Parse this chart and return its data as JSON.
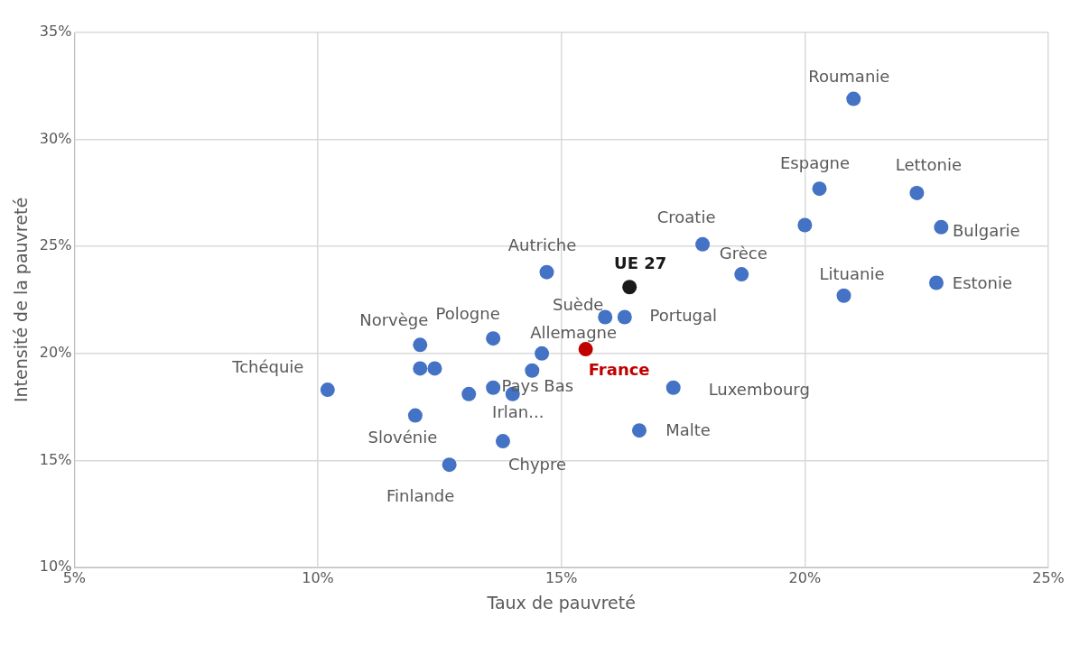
{
  "chart_data": {
    "type": "scatter",
    "xlabel": "Taux de pauvreté",
    "ylabel": "Intensité de la pauvreté",
    "x": [
      21.0,
      20.3,
      22.3,
      22.8,
      22.7,
      20.8,
      20.0,
      17.9,
      18.7,
      16.4,
      14.7,
      15.9,
      16.3,
      15.5,
      14.6,
      13.6,
      12.1,
      12.1,
      12.4,
      10.2,
      14.4,
      13.1,
      13.6,
      14.0,
      17.3,
      12.0,
      13.8,
      16.6,
      12.7
    ],
    "values": [
      31.9,
      27.7,
      27.5,
      25.9,
      23.3,
      22.7,
      26.0,
      25.1,
      23.7,
      23.1,
      23.8,
      21.7,
      21.7,
      20.2,
      20.0,
      20.7,
      20.4,
      19.3,
      19.3,
      18.3,
      19.2,
      18.1,
      18.4,
      18.1,
      18.4,
      17.1,
      15.9,
      16.4,
      14.8
    ],
    "colors": [
      "#4472c4",
      "#4472c4",
      "#4472c4",
      "#4472c4",
      "#4472c4",
      "#4472c4",
      "#4472c4",
      "#4472c4",
      "#4472c4",
      "#1a1a1a",
      "#4472c4",
      "#4472c4",
      "#4472c4",
      "#c00000",
      "#4472c4",
      "#4472c4",
      "#4472c4",
      "#4472c4",
      "#4472c4",
      "#4472c4",
      "#4472c4",
      "#4472c4",
      "#4472c4",
      "#4472c4",
      "#4472c4",
      "#4472c4",
      "#4472c4",
      "#4472c4",
      "#4472c4"
    ],
    "marker": "circle",
    "xlim": [
      5,
      25
    ],
    "ylim": [
      10,
      35
    ],
    "xticks": [
      {
        "value": 5,
        "label": "5%"
      },
      {
        "value": 10,
        "label": "10%"
      },
      {
        "value": 15,
        "label": "15%"
      },
      {
        "value": 20,
        "label": "20%"
      },
      {
        "value": 25,
        "label": "25%"
      }
    ],
    "yticks": [
      {
        "value": 10,
        "label": "10%"
      },
      {
        "value": 15,
        "label": "15%"
      },
      {
        "value": 20,
        "label": "20%"
      },
      {
        "value": 25,
        "label": "25%"
      },
      {
        "value": 30,
        "label": "30%"
      },
      {
        "value": 35,
        "label": "35%"
      }
    ],
    "grid": true,
    "annotations": [
      {
        "text": "Roumanie",
        "x": 21.0,
        "y": 31.9
      },
      {
        "text": "Espagne",
        "x": 20.3,
        "y": 27.7
      },
      {
        "text": "Lettonie",
        "x": 22.3,
        "y": 27.5
      },
      {
        "text": "Bulgarie",
        "x": 22.8,
        "y": 25.9
      },
      {
        "text": "Estonie",
        "x": 22.7,
        "y": 23.3
      },
      {
        "text": "Lituanie",
        "x": 20.8,
        "y": 22.7
      },
      {
        "text": "Croatie",
        "x": 17.9,
        "y": 25.1
      },
      {
        "text": "Grèce",
        "x": 18.7,
        "y": 23.7
      },
      {
        "text": "UE 27",
        "x": 16.4,
        "y": 23.1
      },
      {
        "text": "Autriche",
        "x": 14.7,
        "y": 23.8
      },
      {
        "text": "Suède",
        "x": 15.9,
        "y": 21.7
      },
      {
        "text": "Portugal",
        "x": 16.3,
        "y": 21.7
      },
      {
        "text": "France",
        "x": 15.5,
        "y": 20.2
      },
      {
        "text": "Allemagne",
        "x": 14.6,
        "y": 20.0
      },
      {
        "text": "Pologne",
        "x": 13.6,
        "y": 20.7
      },
      {
        "text": "Norvège",
        "x": 12.1,
        "y": 20.4
      },
      {
        "text": "Tchéquie",
        "x": 10.2,
        "y": 18.3
      },
      {
        "text": "Pays Bas",
        "x": 14.4,
        "y": 19.2
      },
      {
        "text": "Irlan...",
        "x": 14.0,
        "y": 18.1
      },
      {
        "text": "Luxembourg",
        "x": 17.3,
        "y": 18.4
      },
      {
        "text": "Slovénie",
        "x": 12.0,
        "y": 17.1
      },
      {
        "text": "Chypre",
        "x": 13.8,
        "y": 15.9
      },
      {
        "text": "Malte",
        "x": 16.6,
        "y": 16.4
      },
      {
        "text": "Finlande",
        "x": 12.7,
        "y": 14.8
      }
    ]
  }
}
